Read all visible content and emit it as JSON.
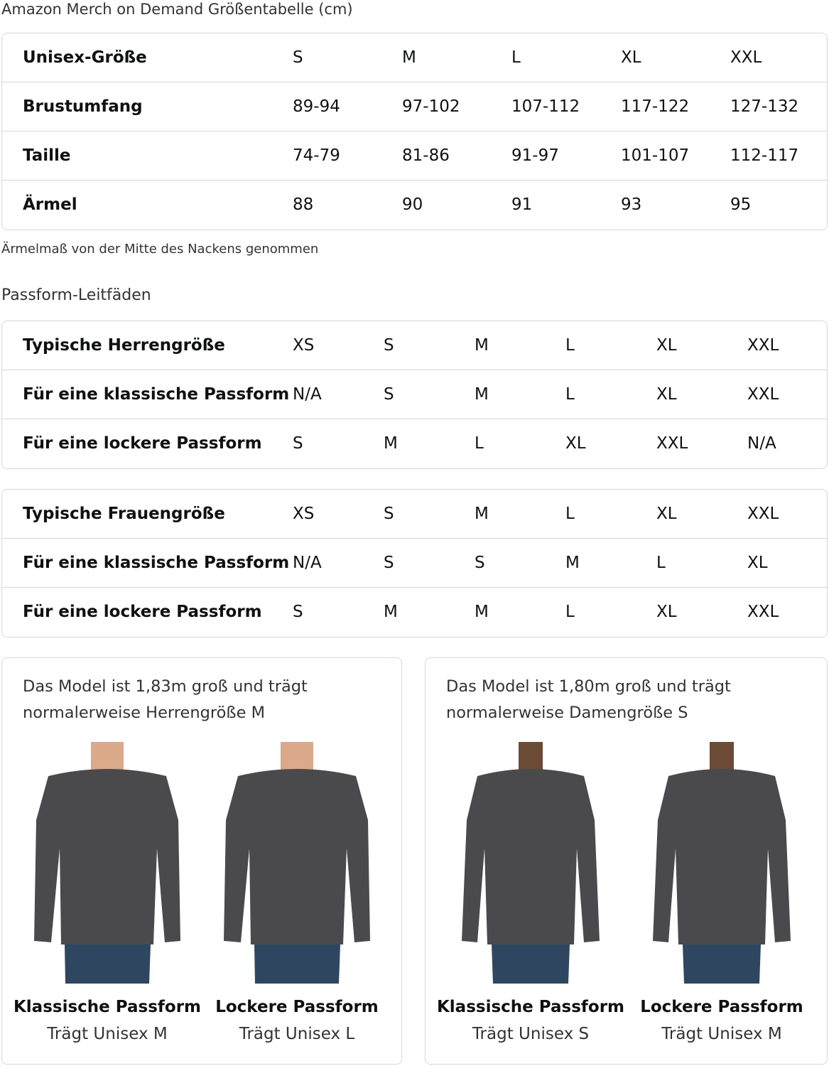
{
  "title": "Amazon Merch on Demand Größentabelle (cm)",
  "unisex_table": {
    "rows": [
      {
        "label": "Unisex-Größe",
        "values": [
          "S",
          "M",
          "L",
          "XL",
          "XXL"
        ]
      },
      {
        "label": "Brustumfang",
        "values": [
          "89-94",
          "97-102",
          "107-112",
          "117-122",
          "127-132"
        ]
      },
      {
        "label": "Taille",
        "values": [
          "74-79",
          "81-86",
          "91-97",
          "101-107",
          "112-117"
        ]
      },
      {
        "label": "Ärmel",
        "values": [
          "88",
          "90",
          "91",
          "93",
          "95"
        ]
      }
    ]
  },
  "note": "Ärmelmaß von der Mitte des Nackens genommen",
  "fit_heading": "Passform-Leitfäden",
  "men_table": {
    "rows": [
      {
        "label": "Typische Herrengröße",
        "values": [
          "XS",
          "S",
          "M",
          "L",
          "XL",
          "XXL"
        ]
      },
      {
        "label": "Für eine klassische Passform",
        "values": [
          "N/A",
          "S",
          "M",
          "L",
          "XL",
          "XXL"
        ]
      },
      {
        "label": "Für eine lockere Passform",
        "values": [
          "S",
          "M",
          "L",
          "XL",
          "XXL",
          "N/A"
        ]
      }
    ]
  },
  "women_table": {
    "rows": [
      {
        "label": "Typische Frauengröße",
        "values": [
          "XS",
          "S",
          "M",
          "L",
          "XL",
          "XXL"
        ]
      },
      {
        "label": "Für eine klassische Passform",
        "values": [
          "N/A",
          "S",
          "S",
          "M",
          "L",
          "XL"
        ]
      },
      {
        "label": "Für eine lockere Passform",
        "values": [
          "S",
          "M",
          "M",
          "L",
          "XL",
          "XXL"
        ]
      }
    ]
  },
  "cards": [
    {
      "text": [
        "Das Model ist 1,83m groß und trägt",
        "normalerweise Herrengröße M"
      ],
      "figures": [
        {
          "label": "Klassische Passform",
          "sub": "Trägt Unisex M"
        },
        {
          "label": "Lockere Passform",
          "sub": "Trägt Unisex L"
        }
      ]
    },
    {
      "text": [
        "Das Model ist 1,80m groß und trägt",
        "normalerweise Damengröße S"
      ],
      "figures": [
        {
          "label": "Klassische Passform",
          "sub": "Trägt Unisex S"
        },
        {
          "label": "Lockere Passform",
          "sub": "Trägt Unisex M"
        }
      ]
    }
  ],
  "colors": {
    "border": "#d5d9d9",
    "shirt": "#4a4a4c",
    "jeans": "#2f4660"
  }
}
